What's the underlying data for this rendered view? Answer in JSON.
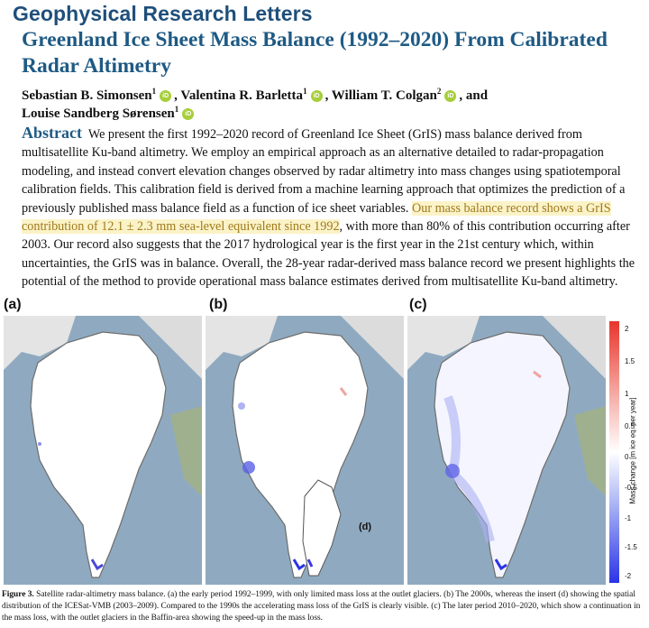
{
  "journal": "Geophysical Research Letters",
  "title": "Greenland Ice Sheet Mass Balance (1992–2020) From Calibrated Radar Altimetry",
  "authors": [
    {
      "name": "Sebastian B. Simonsen",
      "aff": "1",
      "sep": ", "
    },
    {
      "name": "Valentina R. Barletta",
      "aff": "1",
      "sep": ", "
    },
    {
      "name": "William T. Colgan",
      "aff": "2",
      "sep": ", and "
    },
    {
      "name": "Louise Sandberg Sørensen",
      "aff": "1",
      "sep": ""
    }
  ],
  "orcid_glyph": "iD",
  "abstract": {
    "heading": "Abstract",
    "text_before": "We present the first 1992–2020 record of Greenland Ice Sheet (GrIS) mass balance derived from multisatellite Ku-band altimetry. We employ an empirical approach as an alternative detailed to radar-propagation modeling, and instead convert elevation changes observed by radar altimetry into mass changes using spatiotemporal calibration fields. This calibration field is derived from a machine learning approach that optimizes the prediction of a previously published mass balance field as a function of ice sheet variables.",
    "highlight": "Our mass balance record shows a GrIS contribution of 12.1 ± 2.3 mm sea-level equivalent since 1992",
    "text_after": ", with more than 80% of this contribution occurring after 2003. Our record also suggests that the 2017 hydrological year is the first year in the 21st century which, within uncertainties, the GrIS was in balance. Overall, the 28-year radar-derived mass balance record we present highlights the potential of the method to provide operational mass balance estimates derived from multisatellite Ku-band altimetry."
  },
  "panels": [
    {
      "label": "(a)"
    },
    {
      "label": "(b)",
      "inset_label": "(d)"
    },
    {
      "label": "(c)"
    }
  ],
  "colorbar": {
    "label": "Mass change [m ice eq. per year]",
    "ticks": [
      "2",
      "1.5",
      "1",
      "0.5",
      "0",
      "-0.5",
      "-1",
      "-1.5",
      "-2"
    ],
    "colors": {
      "positive": "#e8352b",
      "zero": "#ffffff",
      "negative": "#2a34e6"
    }
  },
  "caption": {
    "label": "Figure 3.",
    "text": "Satellite radar-altimetry mass balance. (a) the early period 1992–1999, with only limited mass loss at the outlet glaciers. (b) The 2000s, whereas the insert (d) showing the spatial distribution of the ICESat-VMB (2003–2009). Compared to the 1990s the accelerating mass loss of the GrIS is clearly visible. (c) The later period 2010–2020, which show a continuation in the mass loss, with the outlet glaciers in the Baffin-area showing the speed-up in the mass loss."
  }
}
